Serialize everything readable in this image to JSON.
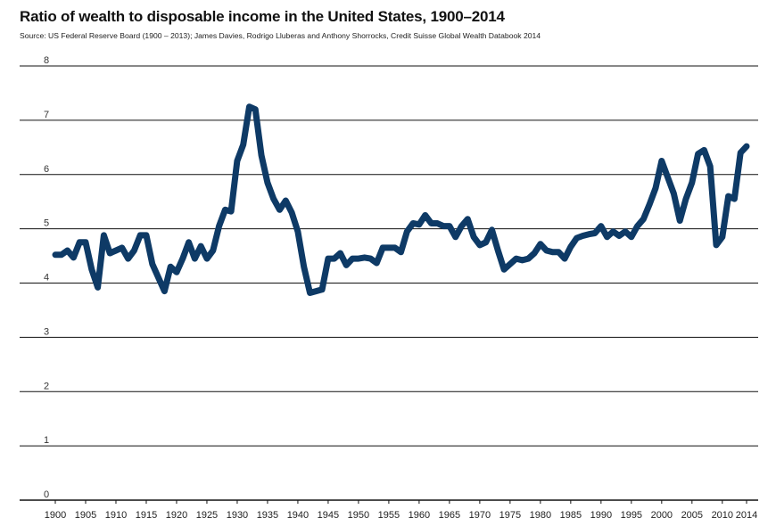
{
  "chart_data": {
    "type": "line",
    "title": "Ratio of wealth to disposable income in the United States, 1900–2014",
    "subtitle": "Source: US Federal Reserve Board (1900 – 2013); James Davies, Rodrigo Lluberas and Anthony Shorrocks, Credit Suisse Global Wealth Databook 2014",
    "xlabel": "",
    "ylabel": "",
    "xlim": [
      1900,
      2014
    ],
    "ylim": [
      0,
      8
    ],
    "grid": true,
    "y_ticks": [
      "0",
      "1",
      "2",
      "3",
      "4",
      "5",
      "6",
      "7",
      "8"
    ],
    "x_ticks": [
      "1900",
      "1905",
      "1910",
      "1915",
      "1920",
      "1925",
      "1930",
      "1935",
      "1940",
      "1945",
      "1950",
      "1955",
      "1960",
      "1965",
      "1970",
      "1975",
      "1980",
      "1985",
      "1990",
      "1995",
      "2000",
      "2005",
      "2010",
      "2014"
    ],
    "series": [
      {
        "name": "Wealth-to-disposable-income ratio",
        "color": "#0e3a66",
        "x": [
          1900,
          1901,
          1902,
          1903,
          1904,
          1905,
          1906,
          1907,
          1908,
          1909,
          1910,
          1911,
          1912,
          1913,
          1914,
          1915,
          1916,
          1917,
          1918,
          1919,
          1920,
          1921,
          1922,
          1923,
          1924,
          1925,
          1926,
          1927,
          1928,
          1929,
          1930,
          1931,
          1932,
          1933,
          1934,
          1935,
          1936,
          1937,
          1938,
          1939,
          1940,
          1941,
          1942,
          1943,
          1944,
          1945,
          1946,
          1947,
          1948,
          1949,
          1950,
          1951,
          1952,
          1953,
          1954,
          1955,
          1956,
          1957,
          1958,
          1959,
          1960,
          1961,
          1962,
          1963,
          1964,
          1965,
          1966,
          1967,
          1968,
          1969,
          1970,
          1971,
          1972,
          1973,
          1974,
          1975,
          1976,
          1977,
          1978,
          1979,
          1980,
          1981,
          1982,
          1983,
          1984,
          1985,
          1986,
          1987,
          1988,
          1989,
          1990,
          1991,
          1992,
          1993,
          1994,
          1995,
          1996,
          1997,
          1998,
          1999,
          2000,
          2001,
          2002,
          2003,
          2004,
          2005,
          2006,
          2007,
          2008,
          2009,
          2010,
          2011,
          2012,
          2013,
          2014
        ],
        "values": [
          4.52,
          4.52,
          4.6,
          4.47,
          4.75,
          4.75,
          4.25,
          3.92,
          4.88,
          4.55,
          4.6,
          4.65,
          4.45,
          4.6,
          4.88,
          4.88,
          4.35,
          4.1,
          3.85,
          4.3,
          4.2,
          4.45,
          4.75,
          4.45,
          4.68,
          4.45,
          4.6,
          5.05,
          5.35,
          5.32,
          6.25,
          6.55,
          7.25,
          7.2,
          6.35,
          5.85,
          5.55,
          5.35,
          5.52,
          5.3,
          4.95,
          4.3,
          3.82,
          3.85,
          3.88,
          4.45,
          4.45,
          4.55,
          4.33,
          4.45,
          4.45,
          4.47,
          4.45,
          4.37,
          4.65,
          4.65,
          4.65,
          4.57,
          4.95,
          5.1,
          5.08,
          5.25,
          5.1,
          5.1,
          5.05,
          5.05,
          4.85,
          5.05,
          5.18,
          4.85,
          4.7,
          4.75,
          4.98,
          4.6,
          4.25,
          4.35,
          4.45,
          4.42,
          4.45,
          4.55,
          4.72,
          4.6,
          4.57,
          4.57,
          4.45,
          4.67,
          4.83,
          4.87,
          4.9,
          4.92,
          5.05,
          4.85,
          4.95,
          4.87,
          4.95,
          4.85,
          5.05,
          5.18,
          5.45,
          5.75,
          6.25,
          5.95,
          5.65,
          5.15,
          5.55,
          5.85,
          6.38,
          6.45,
          6.15,
          4.7,
          4.85,
          5.6,
          5.55,
          6.4,
          6.52
        ]
      }
    ]
  }
}
